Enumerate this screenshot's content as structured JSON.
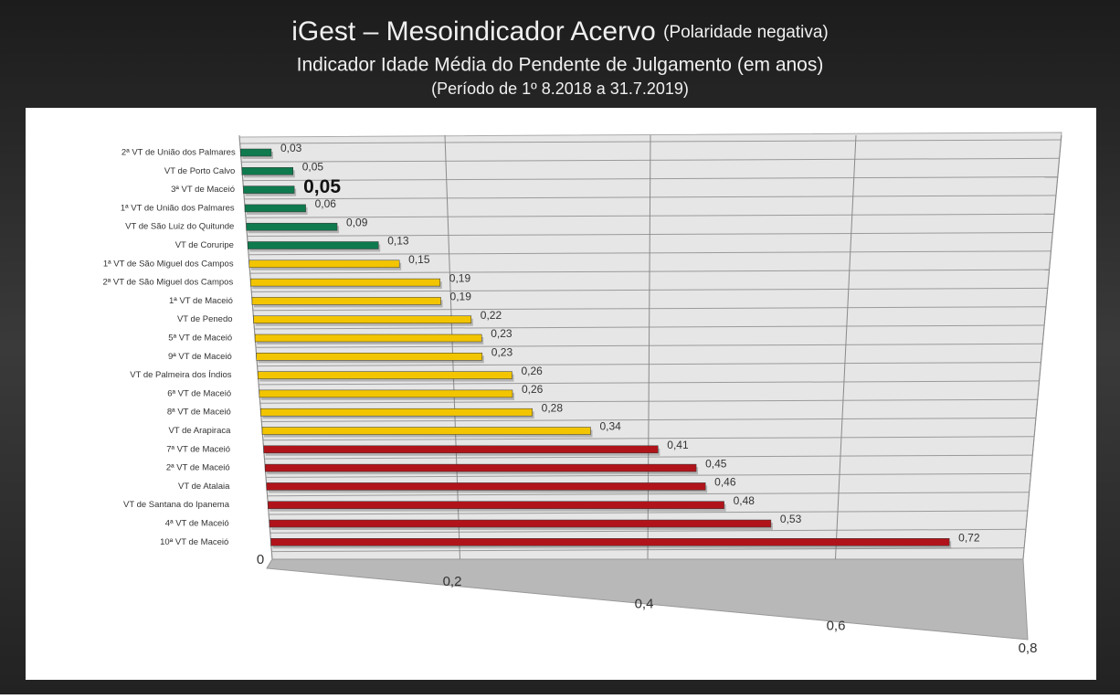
{
  "chart_data": {
    "type": "bar",
    "orientation": "horizontal",
    "title": "iGest – Mesoindicador Acervo",
    "title_note": "(Polaridade negativa)",
    "subtitle": "Indicador Idade Média do  Pendente de Julgamento (em anos)",
    "period": "(Período de 1º 8.2018  a  31.7.2019)",
    "categories": [
      "2ª VT de União dos Palmares",
      "VT de Porto Calvo",
      "3ª VT de Maceió",
      "1ª VT de União dos Palmares",
      "VT de São Luiz do Quitunde",
      "VT de Coruripe",
      "1ª VT de São Miguel dos Campos",
      "2ª VT de São Miguel dos Campos",
      "1ª VT de Maceió",
      "VT de Penedo",
      "5ª VT de Maceió",
      "9ª VT de Maceió",
      "VT de Palmeira dos Índios",
      "6ª VT de Maceió",
      "8ª VT de Maceió",
      "VT de Arapiraca",
      "7ª VT de Maceió",
      "2ª VT de Maceió",
      "VT de Atalaia",
      "VT de Santana do Ipanema",
      "4ª VT de Maceió",
      "10ª VT de Maceió"
    ],
    "values": [
      0.03,
      0.05,
      0.05,
      0.06,
      0.09,
      0.13,
      0.15,
      0.19,
      0.19,
      0.22,
      0.23,
      0.23,
      0.26,
      0.26,
      0.28,
      0.34,
      0.41,
      0.45,
      0.46,
      0.48,
      0.53,
      0.72
    ],
    "value_labels": [
      "0,03",
      "0,05",
      "0,05",
      "0,06",
      "0,09",
      "0,13",
      "0,15",
      "0,19",
      "0,19",
      "0,22",
      "0,23",
      "0,23",
      "0,26",
      "0,26",
      "0,28",
      "0,34",
      "0,41",
      "0,45",
      "0,46",
      "0,48",
      "0,53",
      "0,72"
    ],
    "colors": [
      "#0e7a4e",
      "#0e7a4e",
      "#0e7a4e",
      "#0e7a4e",
      "#0e7a4e",
      "#0e7a4e",
      "#f2c500",
      "#f2c500",
      "#f2c500",
      "#f2c500",
      "#f2c500",
      "#f2c500",
      "#f2c500",
      "#f2c500",
      "#f2c500",
      "#f2c500",
      "#b0141a",
      "#b0141a",
      "#b0141a",
      "#b0141a",
      "#b0141a",
      "#b0141a"
    ],
    "highlight_index": 2,
    "xlim": [
      0,
      0.8
    ],
    "xticks": [
      0,
      {
        "value": 0.2,
        "label": "0,2"
      },
      {
        "value": 0.4,
        "label": "0,4"
      },
      {
        "value": 0.6,
        "label": "0,6"
      },
      {
        "value": 0.8,
        "label": "0,8"
      }
    ],
    "grid": true
  }
}
